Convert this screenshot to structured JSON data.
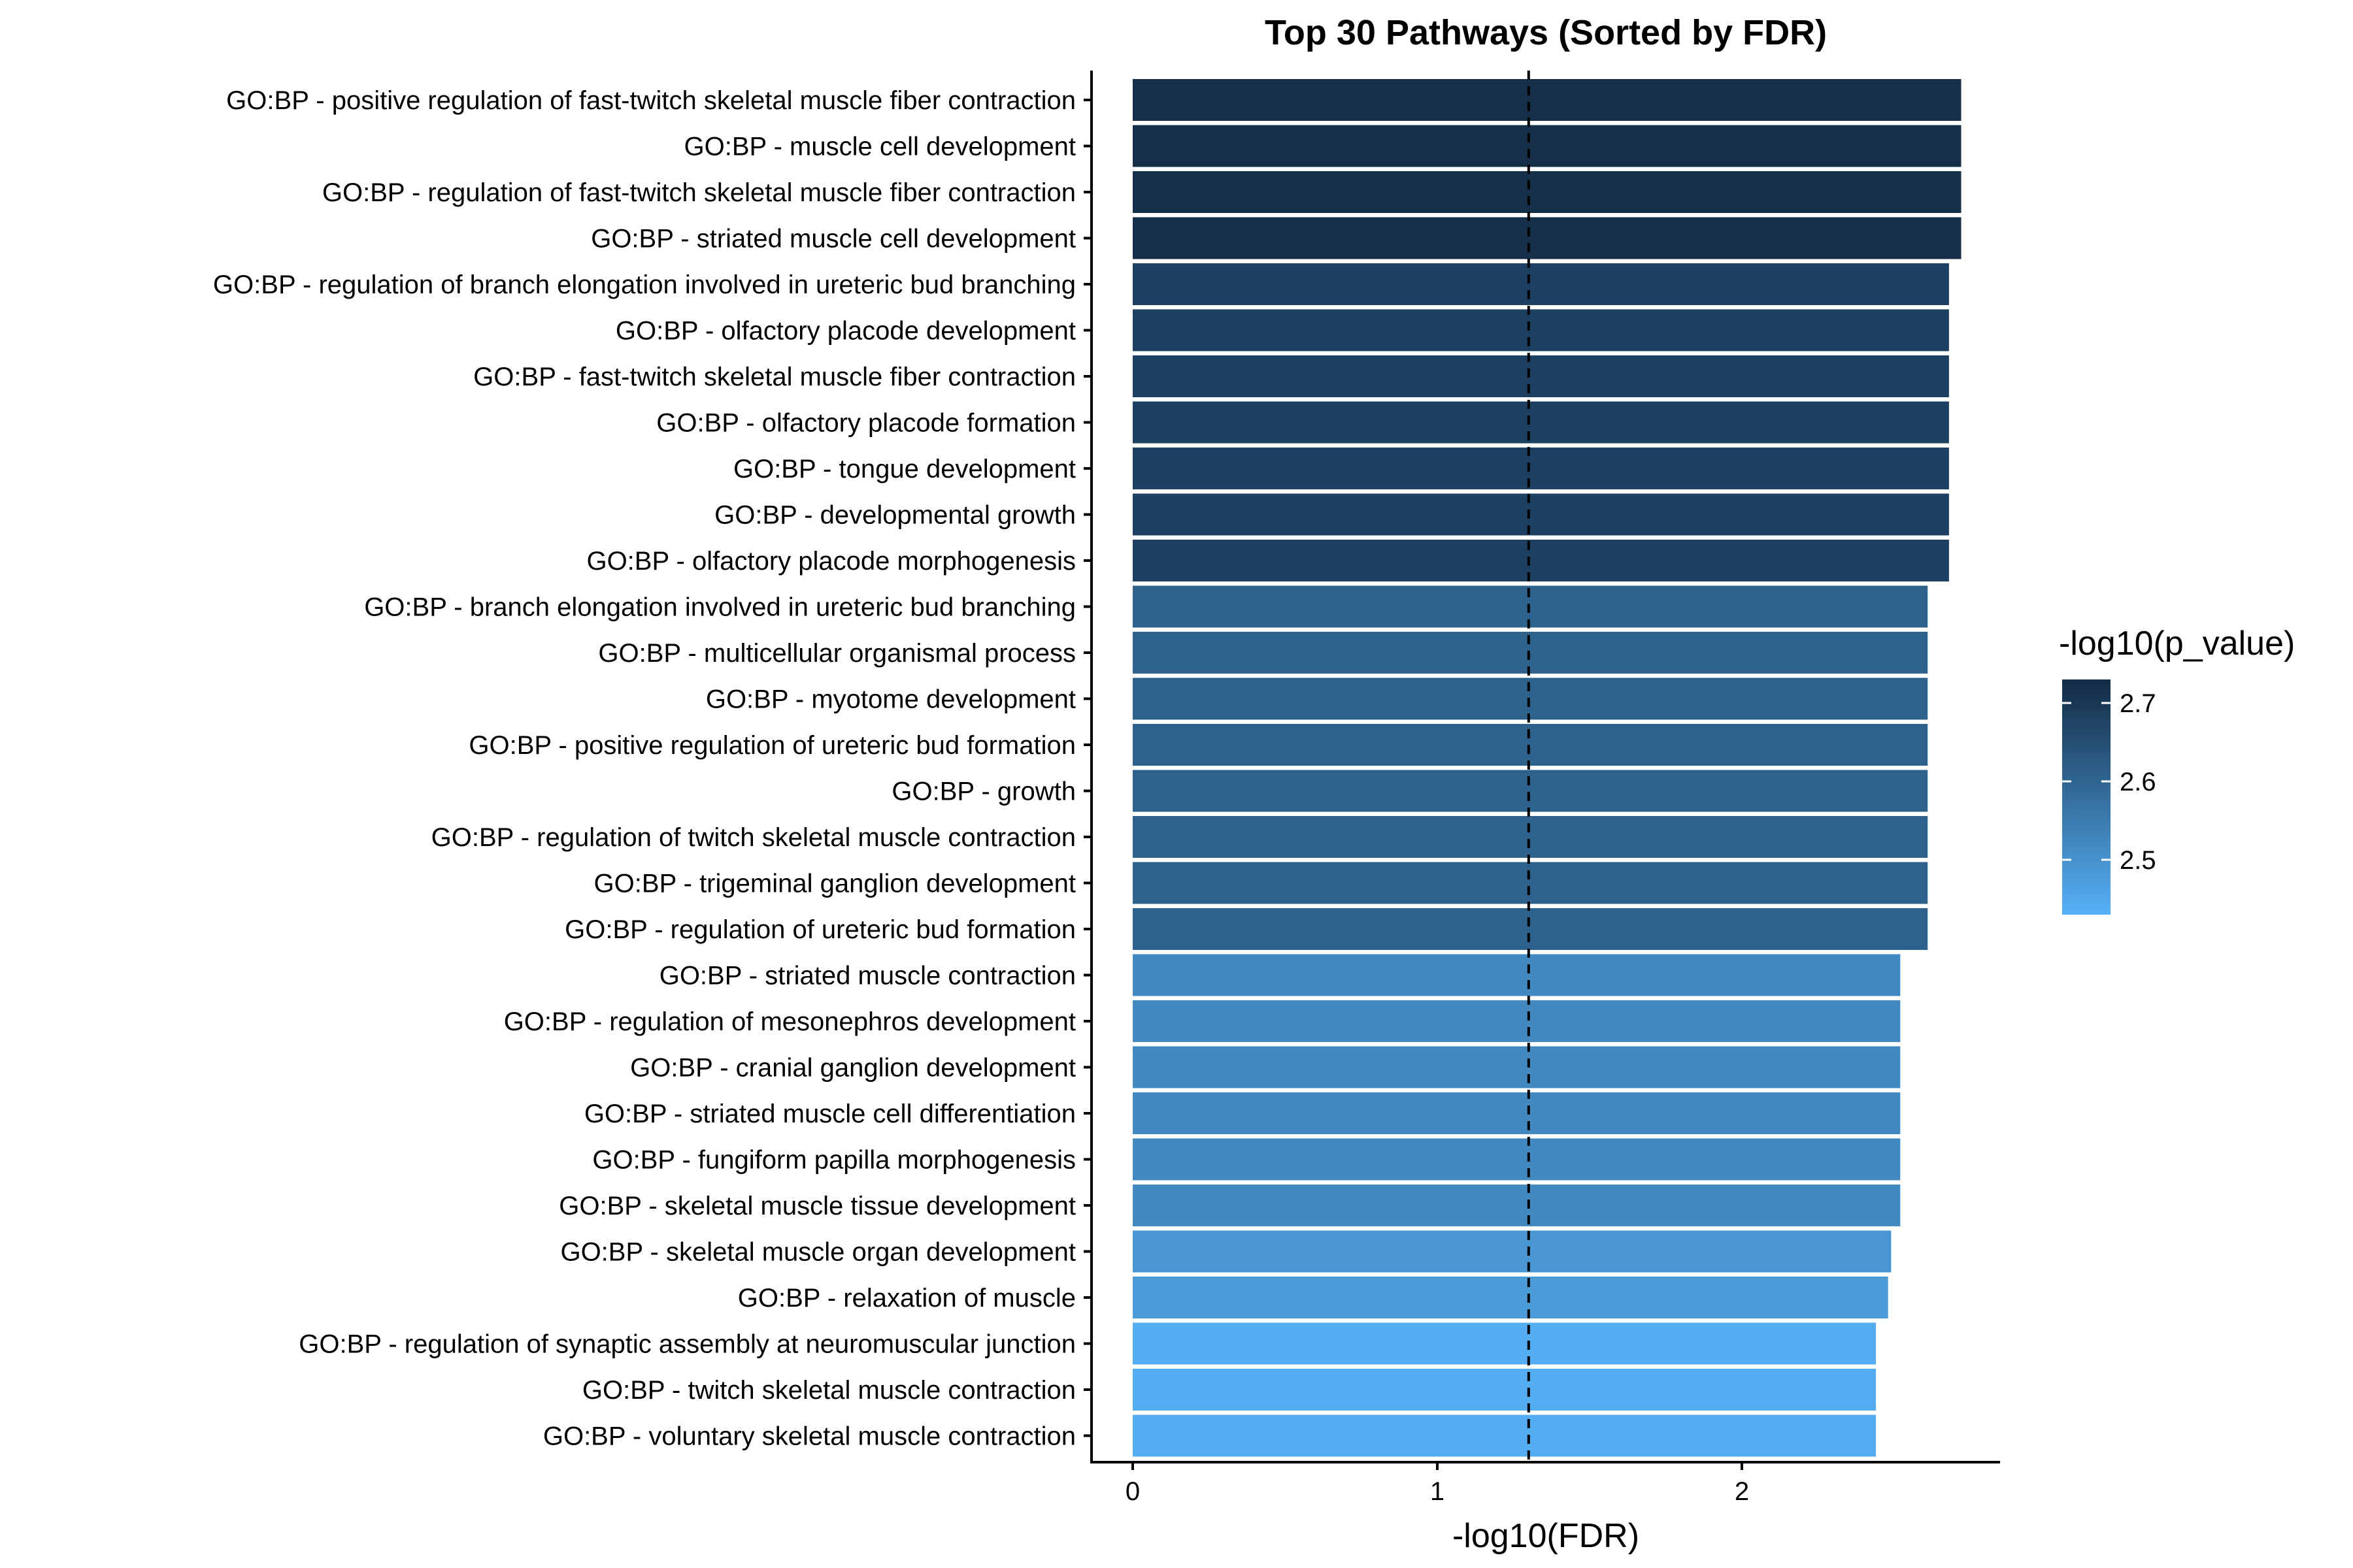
{
  "chart_data": {
    "type": "bar",
    "orientation": "horizontal",
    "title": "Top 30 Pathways (Sorted by FDR)",
    "xlabel": "-log10(FDR)",
    "ylabel": "",
    "xlim": [
      0,
      2.85
    ],
    "xticks": [
      0,
      1,
      2
    ],
    "reference_line": {
      "x": 1.3,
      "style": "dashed"
    },
    "grid": false,
    "categories": [
      "GO:BP - positive regulation of fast-twitch skeletal muscle fiber contraction",
      "GO:BP - muscle cell development",
      "GO:BP - regulation of fast-twitch skeletal muscle fiber contraction",
      "GO:BP - striated muscle cell development",
      "GO:BP - regulation of branch elongation involved in ureteric bud branching",
      "GO:BP - olfactory placode development",
      "GO:BP - fast-twitch skeletal muscle fiber contraction",
      "GO:BP - olfactory placode formation",
      "GO:BP - tongue development",
      "GO:BP - developmental growth",
      "GO:BP - olfactory placode morphogenesis",
      "GO:BP - branch elongation involved in ureteric bud branching",
      "GO:BP - multicellular organismal process",
      "GO:BP - myotome development",
      "GO:BP - positive regulation of ureteric bud formation",
      "GO:BP - growth",
      "GO:BP - regulation of twitch skeletal muscle contraction",
      "GO:BP - trigeminal ganglion development",
      "GO:BP - regulation of ureteric bud formation",
      "GO:BP - striated muscle contraction",
      "GO:BP - regulation of mesonephros development",
      "GO:BP - cranial ganglion development",
      "GO:BP - striated muscle cell differentiation",
      "GO:BP - fungiform papilla morphogenesis",
      "GO:BP - skeletal muscle tissue development",
      "GO:BP - skeletal muscle organ development",
      "GO:BP - relaxation of muscle",
      "GO:BP - regulation of synaptic assembly at neuromuscular junction",
      "GO:BP - twitch skeletal muscle contraction",
      "GO:BP - voluntary skeletal muscle contraction"
    ],
    "values": [
      2.72,
      2.72,
      2.72,
      2.72,
      2.68,
      2.68,
      2.68,
      2.68,
      2.68,
      2.68,
      2.68,
      2.61,
      2.61,
      2.61,
      2.61,
      2.61,
      2.61,
      2.61,
      2.61,
      2.52,
      2.52,
      2.52,
      2.52,
      2.52,
      2.52,
      2.49,
      2.48,
      2.44,
      2.44,
      2.44
    ],
    "color_values": [
      2.72,
      2.72,
      2.72,
      2.72,
      2.68,
      2.68,
      2.68,
      2.68,
      2.68,
      2.68,
      2.68,
      2.61,
      2.61,
      2.61,
      2.61,
      2.61,
      2.61,
      2.61,
      2.61,
      2.52,
      2.52,
      2.52,
      2.52,
      2.52,
      2.52,
      2.49,
      2.48,
      2.44,
      2.44,
      2.44
    ],
    "legend": {
      "title": "-log10(p_value)",
      "placement": "right",
      "range": [
        2.43,
        2.73
      ],
      "ticks": [
        2.5,
        2.6,
        2.7
      ],
      "tick_labels": [
        "2.5",
        "2.6",
        "2.7"
      ],
      "color_low": "#56B1F7",
      "color_high": "#132B43"
    }
  }
}
